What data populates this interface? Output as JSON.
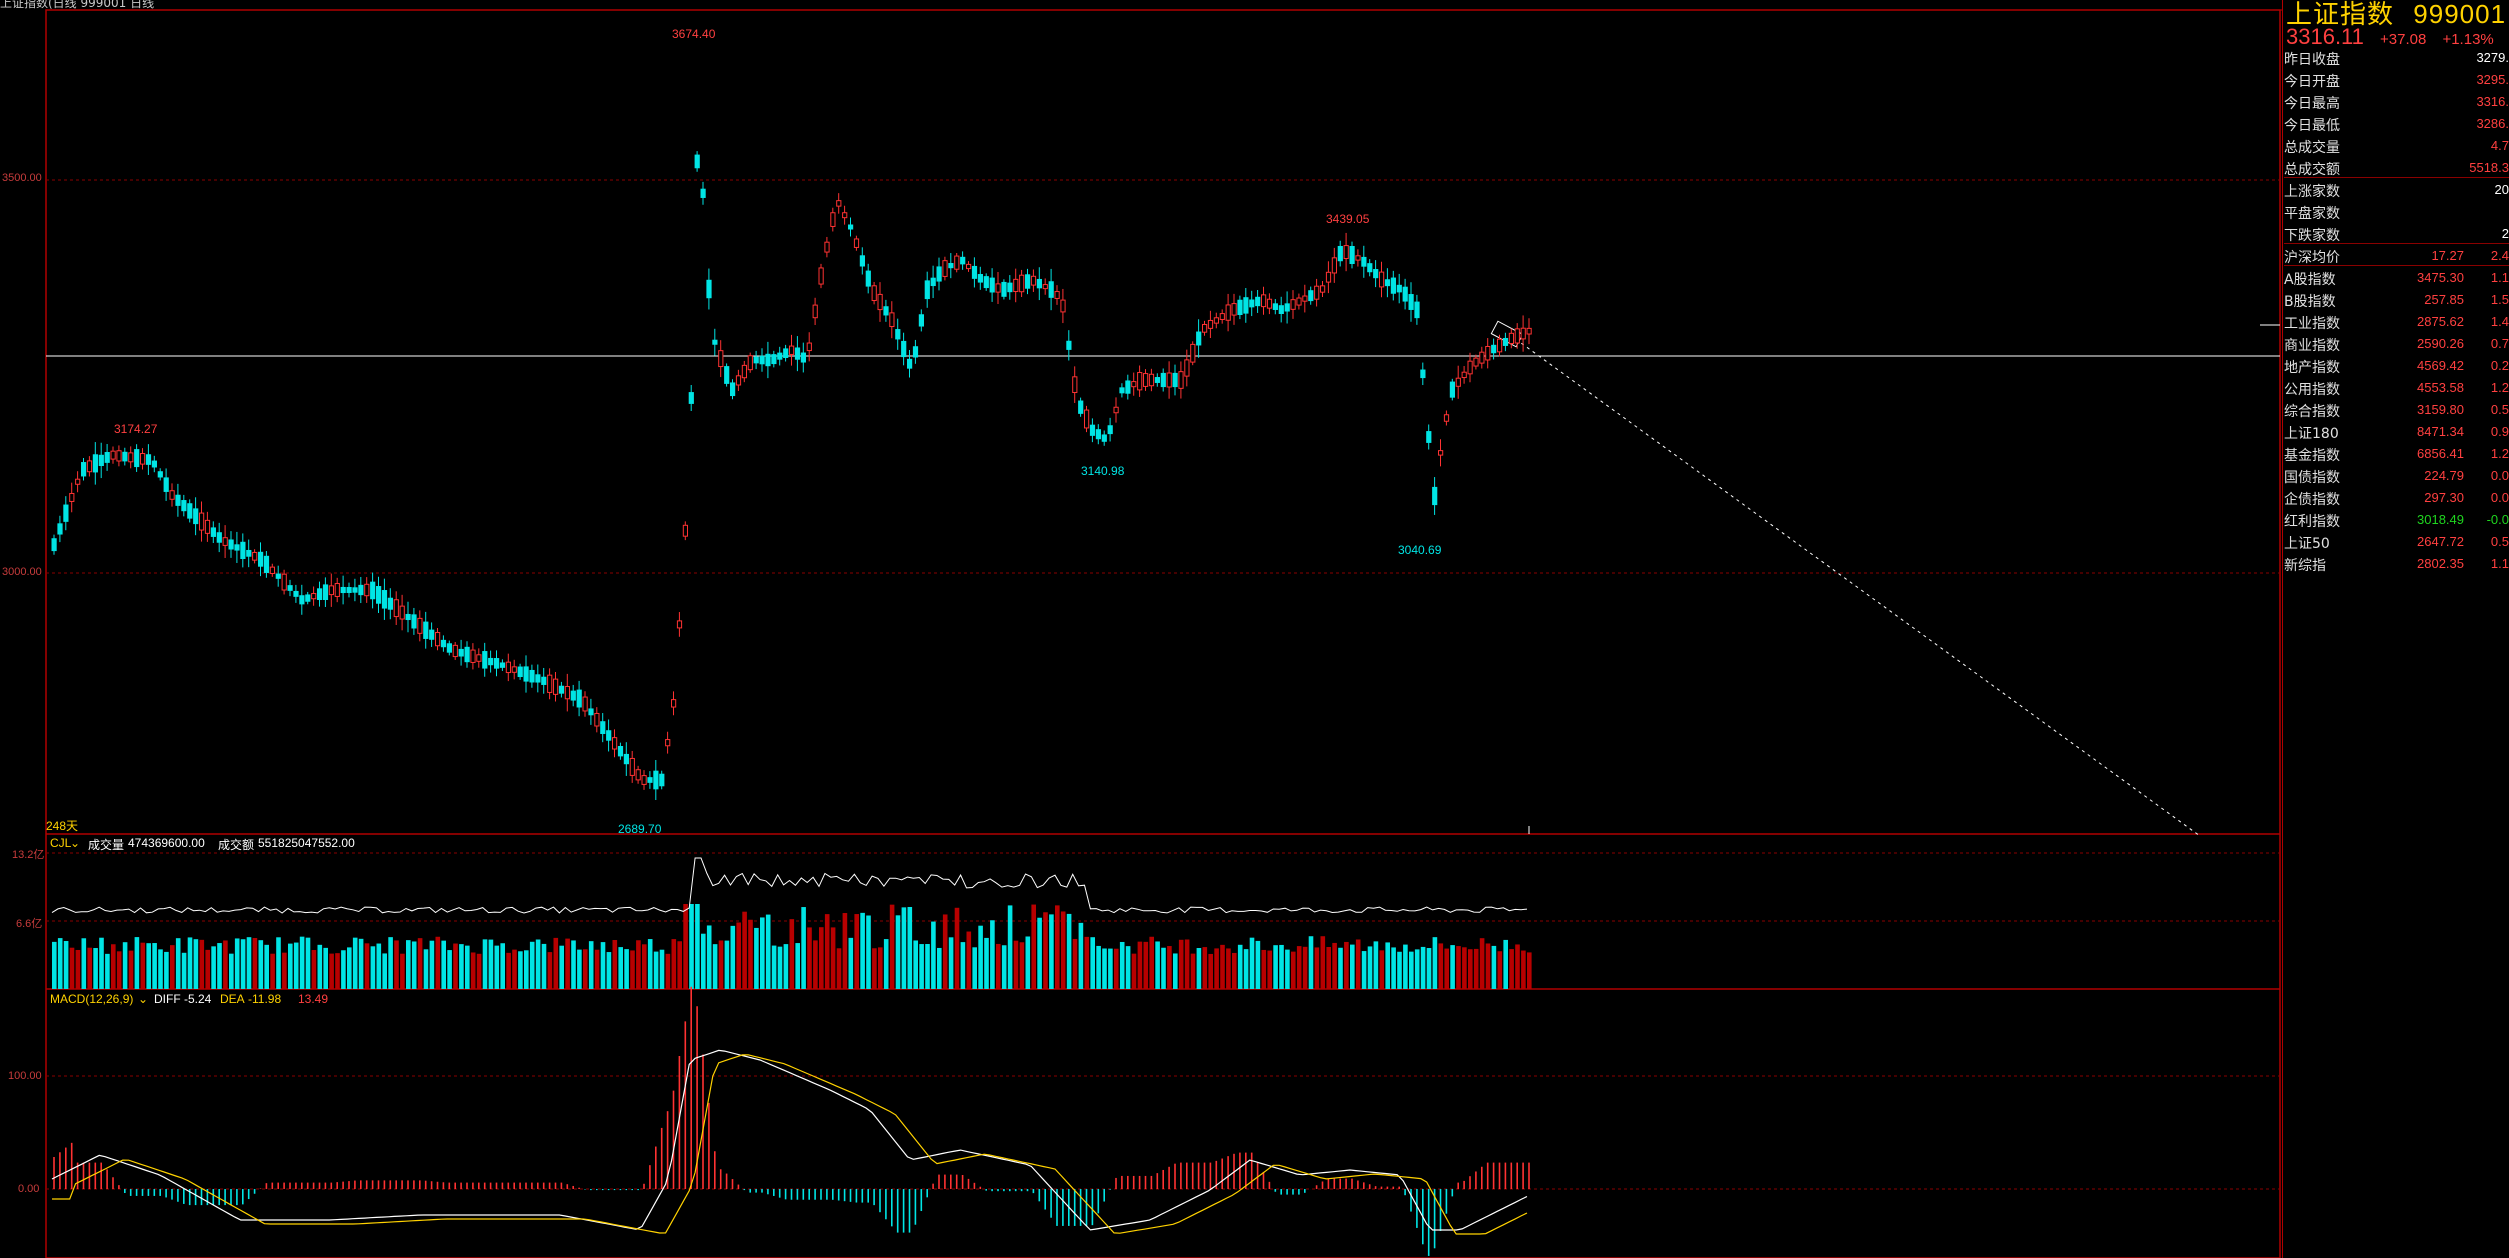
{
  "window": {
    "title_fragment": "上证指数(日线 999001 日线"
  },
  "price_axis": {
    "labels": [
      "3500.00",
      "3000.00"
    ]
  },
  "annotations": {
    "high_peak": "3674.40",
    "left_high": "3174.27",
    "low": "2689.70",
    "mid_low": "3140.98",
    "right_high": "3439.05",
    "recent_low": "3040.69",
    "days": "248天"
  },
  "volume_panel": {
    "name": "CJL",
    "vol_label": "成交量",
    "vol_value": "474369600.00",
    "amt_label": "成交额",
    "amt_value": "551825047552.00",
    "axis_labels": [
      "13.2亿",
      "6.6亿"
    ]
  },
  "macd_panel": {
    "name": "MACD(12,26,9)",
    "diff_label": "DIFF",
    "diff_value": "-5.24",
    "dea_label": "DEA",
    "dea_value": "-11.98",
    "macd_value": "13.49",
    "axis_labels": [
      "100.00",
      "0.00"
    ]
  },
  "sidebar": {
    "name": "上证指数",
    "code": "999001",
    "price": "3316.11",
    "change": "+37.08",
    "change_pct": "+1.13%",
    "stats": [
      {
        "label": "昨日收盘",
        "value": "3279.",
        "color": "white"
      },
      {
        "label": "今日开盘",
        "value": "3295.",
        "color": "red"
      },
      {
        "label": "今日最高",
        "value": "3316.",
        "color": "red"
      },
      {
        "label": "今日最低",
        "value": "3286.",
        "color": "red"
      },
      {
        "label": "总成交量",
        "value": "4.7",
        "color": "red"
      },
      {
        "label": "总成交额",
        "value": "5518.3",
        "color": "red"
      }
    ],
    "counts": [
      {
        "label": "上涨家数",
        "value": "20",
        "color": "white"
      },
      {
        "label": "平盘家数",
        "value": "",
        "color": "white"
      },
      {
        "label": "下跌家数",
        "value": "2",
        "color": "white"
      }
    ],
    "avg": {
      "label": "沪深均价",
      "v1": "17.27",
      "v2": "2.4"
    },
    "indices": [
      {
        "label": "A股指数",
        "v1": "3475.30",
        "v2": "1.1",
        "color": "red"
      },
      {
        "label": "B股指数",
        "v1": "257.85",
        "v2": "1.5",
        "color": "red"
      },
      {
        "label": "工业指数",
        "v1": "2875.62",
        "v2": "1.4",
        "color": "red"
      },
      {
        "label": "商业指数",
        "v1": "2590.26",
        "v2": "0.7",
        "color": "red"
      },
      {
        "label": "地产指数",
        "v1": "4569.42",
        "v2": "0.2",
        "color": "red"
      },
      {
        "label": "公用指数",
        "v1": "4553.58",
        "v2": "1.2",
        "color": "red"
      },
      {
        "label": "综合指数",
        "v1": "3159.80",
        "v2": "0.5",
        "color": "red"
      },
      {
        "label": "上证180",
        "v1": "8471.34",
        "v2": "0.9",
        "color": "red"
      },
      {
        "label": "基金指数",
        "v1": "6856.41",
        "v2": "1.2",
        "color": "red"
      },
      {
        "label": "国债指数",
        "v1": "224.79",
        "v2": "0.0",
        "color": "red"
      },
      {
        "label": "企债指数",
        "v1": "297.30",
        "v2": "0.0",
        "color": "red"
      },
      {
        "label": "红利指数",
        "v1": "3018.49",
        "v2": "-0.0",
        "color": "green"
      },
      {
        "label": "上证50",
        "v1": "2647.72",
        "v2": "0.5",
        "color": "red"
      },
      {
        "label": "新综指",
        "v1": "2802.35",
        "v2": "1.1",
        "color": "red"
      }
    ]
  },
  "colors": {
    "up": "#ff3232",
    "down": "#00e5e5",
    "grid": "#8a0000",
    "macd_diff": "#ffffff",
    "macd_dea": "#ffd200"
  }
}
